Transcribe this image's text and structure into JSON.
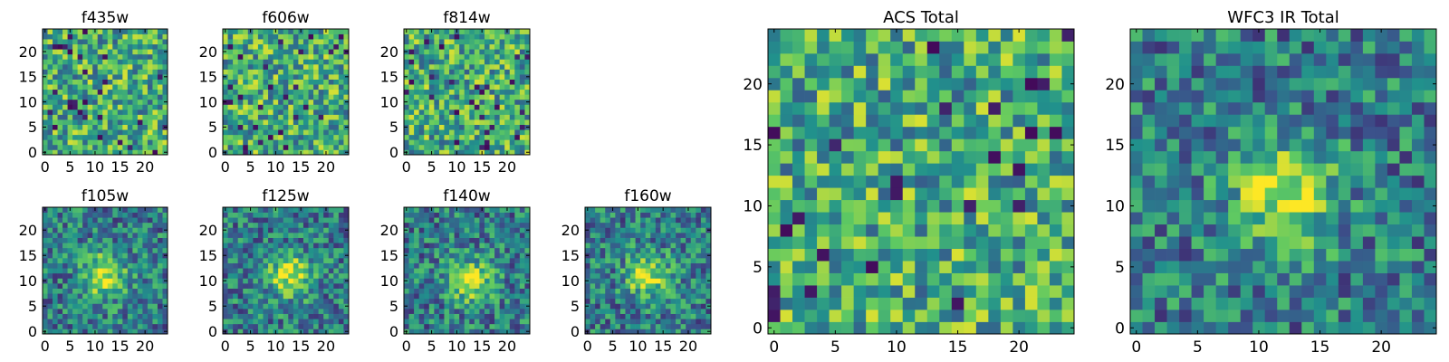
{
  "figure": {
    "colormap": [
      "#440154",
      "#3b528b",
      "#21918c",
      "#5ec962",
      "#fde725"
    ],
    "frame_color": "#000000"
  },
  "chart_data": [
    {
      "type": "heatmap",
      "title": "f435w",
      "grid": [
        25,
        25
      ],
      "xlim": [
        -0.5,
        24.5
      ],
      "ylim": [
        -0.5,
        24.5
      ],
      "xticks": [
        0,
        5,
        10,
        15,
        20
      ],
      "yticks": [
        0,
        5,
        10,
        15,
        20
      ],
      "seed": 11,
      "pattern": "noise",
      "xlabel": "",
      "ylabel": ""
    },
    {
      "type": "heatmap",
      "title": "f606w",
      "grid": [
        25,
        25
      ],
      "xlim": [
        -0.5,
        24.5
      ],
      "ylim": [
        -0.5,
        24.5
      ],
      "xticks": [
        0,
        5,
        10,
        15,
        20
      ],
      "yticks": [
        0,
        5,
        10,
        15,
        20
      ],
      "seed": 23,
      "pattern": "noise",
      "xlabel": "",
      "ylabel": ""
    },
    {
      "type": "heatmap",
      "title": "f814w",
      "grid": [
        25,
        25
      ],
      "xlim": [
        -0.5,
        24.5
      ],
      "ylim": [
        -0.5,
        24.5
      ],
      "xticks": [
        0,
        5,
        10,
        15,
        20
      ],
      "yticks": [
        0,
        5,
        10,
        15,
        20
      ],
      "seed": 37,
      "pattern": "noise",
      "xlabel": "",
      "ylabel": ""
    },
    {
      "type": "heatmap",
      "title": "f105w",
      "grid": [
        25,
        25
      ],
      "xlim": [
        -0.5,
        24.5
      ],
      "ylim": [
        -0.5,
        24.5
      ],
      "xticks": [
        0,
        5,
        10,
        15,
        20
      ],
      "yticks": [
        0,
        5,
        10,
        15,
        20
      ],
      "seed": 41,
      "pattern": "source",
      "center": [
        12,
        11
      ],
      "xlabel": "",
      "ylabel": ""
    },
    {
      "type": "heatmap",
      "title": "f125w",
      "grid": [
        25,
        25
      ],
      "xlim": [
        -0.5,
        24.5
      ],
      "ylim": [
        -0.5,
        24.5
      ],
      "xticks": [
        0,
        5,
        10,
        15,
        20
      ],
      "yticks": [
        0,
        5,
        10,
        15,
        20
      ],
      "seed": 53,
      "pattern": "source",
      "center": [
        13,
        11
      ],
      "xlabel": "",
      "ylabel": ""
    },
    {
      "type": "heatmap",
      "title": "f140w",
      "grid": [
        25,
        25
      ],
      "xlim": [
        -0.5,
        24.5
      ],
      "ylim": [
        -0.5,
        24.5
      ],
      "xticks": [
        0,
        5,
        10,
        15,
        20
      ],
      "yticks": [
        0,
        5,
        10,
        15,
        20
      ],
      "seed": 67,
      "pattern": "source",
      "center": [
        13,
        10
      ],
      "xlabel": "",
      "ylabel": ""
    },
    {
      "type": "heatmap",
      "title": "f160w",
      "grid": [
        25,
        25
      ],
      "xlim": [
        -0.5,
        24.5
      ],
      "ylim": [
        -0.5,
        24.5
      ],
      "xticks": [
        0,
        5,
        10,
        15,
        20
      ],
      "yticks": [
        0,
        5,
        10,
        15,
        20
      ],
      "seed": 79,
      "pattern": "source",
      "center": [
        12,
        11
      ],
      "xlabel": "",
      "ylabel": ""
    },
    {
      "type": "heatmap",
      "title": "ACS Total",
      "grid": [
        25,
        25
      ],
      "xlim": [
        -0.5,
        24.5
      ],
      "ylim": [
        -0.5,
        24.5
      ],
      "xticks": [
        0,
        5,
        10,
        15,
        20
      ],
      "yticks": [
        0,
        5,
        10,
        15,
        20
      ],
      "seed": 83,
      "pattern": "noise",
      "xlabel": "",
      "ylabel": ""
    },
    {
      "type": "heatmap",
      "title": "WFC3 IR Total",
      "grid": [
        25,
        25
      ],
      "xlim": [
        -0.5,
        24.5
      ],
      "ylim": [
        -0.5,
        24.5
      ],
      "xticks": [
        0,
        5,
        10,
        15,
        20
      ],
      "yticks": [
        0,
        5,
        10,
        15,
        20
      ],
      "seed": 97,
      "pattern": "source",
      "center": [
        12,
        11
      ],
      "xlabel": "",
      "ylabel": ""
    }
  ]
}
